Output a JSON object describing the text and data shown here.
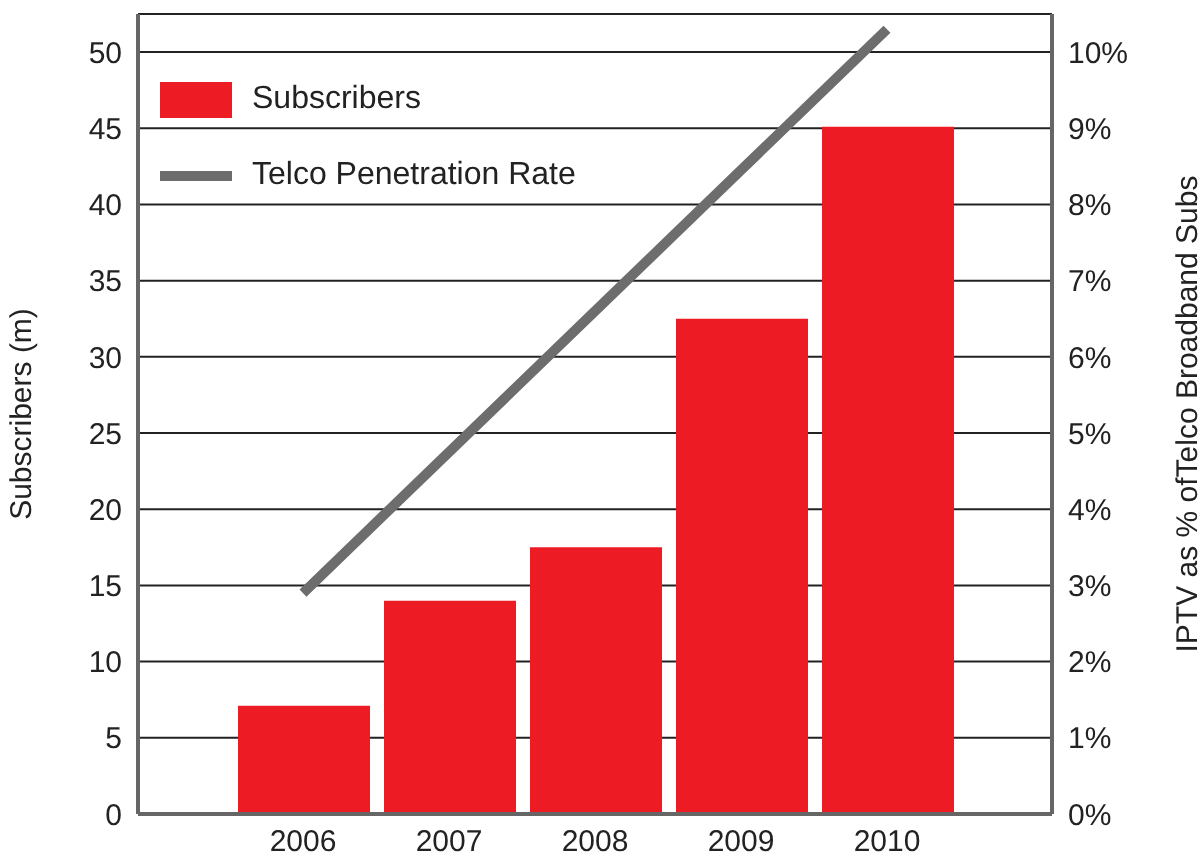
{
  "chart_data": {
    "type": "bar",
    "categories": [
      "2006",
      "2007",
      "2008",
      "2009",
      "2010"
    ],
    "series": [
      {
        "name": "Subscribers",
        "color": "#ed1c24",
        "values": [
          7.1,
          14.0,
          17.5,
          32.5,
          45.1
        ]
      },
      {
        "name": "Telco Penetration Rate",
        "type": "line",
        "axis": "y2",
        "color": "#6d6d6d",
        "values": [
          2.9,
          4.75,
          6.6,
          8.45,
          10.3
        ]
      }
    ],
    "ylabel": "Subscribers (m)",
    "y2label": "IPTV as % ofTelco Broadband Subs",
    "ylim": [
      0,
      52.5
    ],
    "yticks": [
      0,
      5,
      10,
      15,
      20,
      25,
      30,
      35,
      40,
      45,
      50
    ],
    "y2lim": [
      0,
      10.5
    ],
    "y2ticks": [
      {
        "value": 0,
        "label": "0%"
      },
      {
        "value": 1,
        "label": "1%"
      },
      {
        "value": 2,
        "label": "2%"
      },
      {
        "value": 3,
        "label": "3%"
      },
      {
        "value": 4,
        "label": "4%"
      },
      {
        "value": 5,
        "label": "5%"
      },
      {
        "value": 6,
        "label": "6%"
      },
      {
        "value": 7,
        "label": "7%"
      },
      {
        "value": 8,
        "label": "8%"
      },
      {
        "value": 9,
        "label": "9%"
      },
      {
        "value": 10,
        "label": "10%"
      }
    ],
    "grid": "y",
    "legend": "top left",
    "marker": "none",
    "line_style": "solid"
  }
}
